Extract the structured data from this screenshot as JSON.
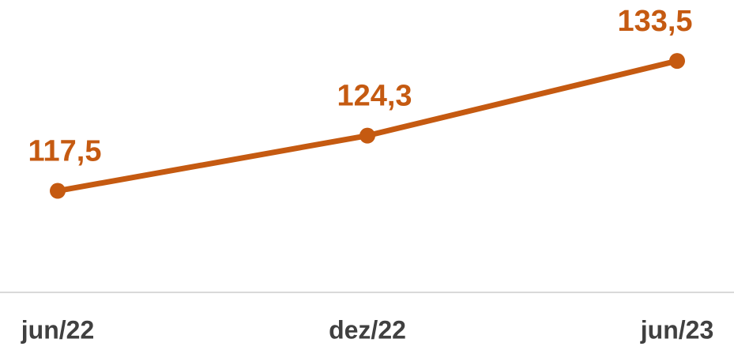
{
  "chart_data": {
    "type": "line",
    "categories": [
      "jun/22",
      "dez/22",
      "jun/23"
    ],
    "series": [
      {
        "name": null,
        "color": "#c55a11",
        "values": [
          117.5,
          124.3,
          133.5
        ],
        "value_labels": [
          "117,5",
          "124,3",
          "133,5"
        ]
      }
    ],
    "ylim": [
      105,
      141
    ]
  }
}
